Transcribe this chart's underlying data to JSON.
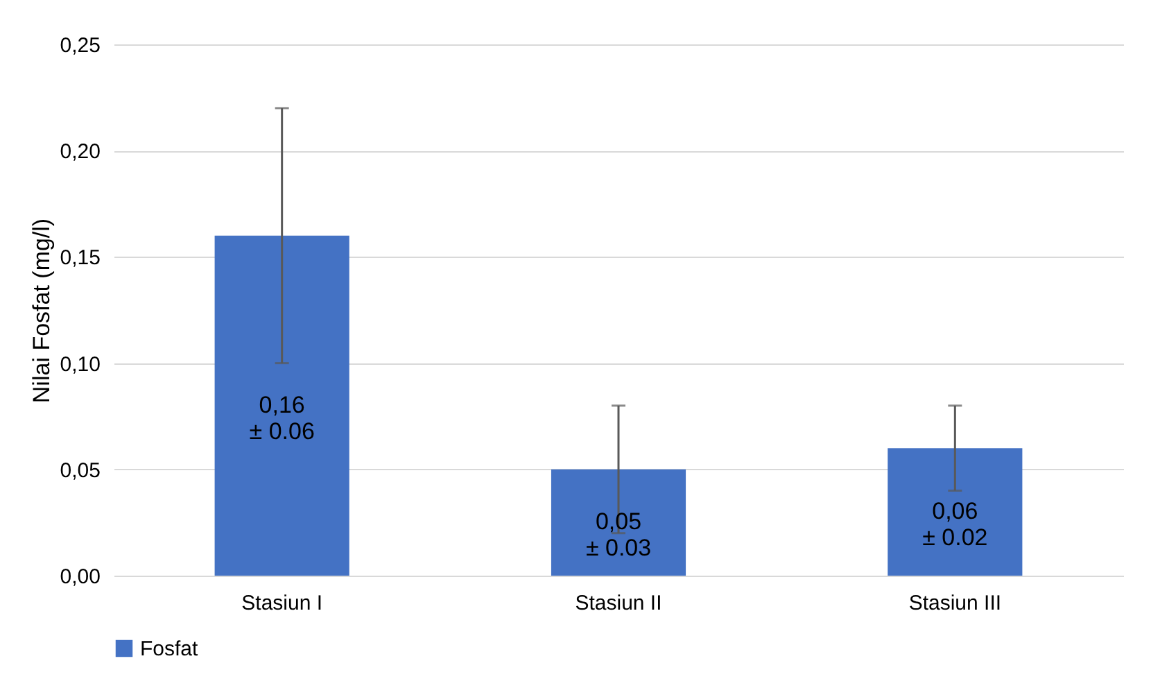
{
  "chart_data": {
    "type": "bar",
    "ylabel": "Nilai Fosfat (mg/l)",
    "categories": [
      "Stasiun I",
      "Stasiun II",
      "Stasiun III"
    ],
    "series": [
      {
        "name": "Fosfat",
        "color": "#4472c4",
        "values": [
          0.16,
          0.05,
          0.06
        ],
        "errors": [
          0.06,
          0.03,
          0.02
        ],
        "value_labels": [
          "0,16\n± 0.06",
          "0,05\n± 0.03",
          "0,06\n± 0.02"
        ]
      }
    ],
    "ylim": [
      0,
      0.25
    ],
    "yticks": [
      {
        "value": 0,
        "label": "0,00"
      },
      {
        "value": 0.05,
        "label": "0,05"
      },
      {
        "value": 0.1,
        "label": "0,10"
      },
      {
        "value": 0.15,
        "label": "0,15"
      },
      {
        "value": 0.2,
        "label": "0,20"
      },
      {
        "value": 0.25,
        "label": "0,25"
      }
    ],
    "grid": "y",
    "legend": "bottom"
  }
}
